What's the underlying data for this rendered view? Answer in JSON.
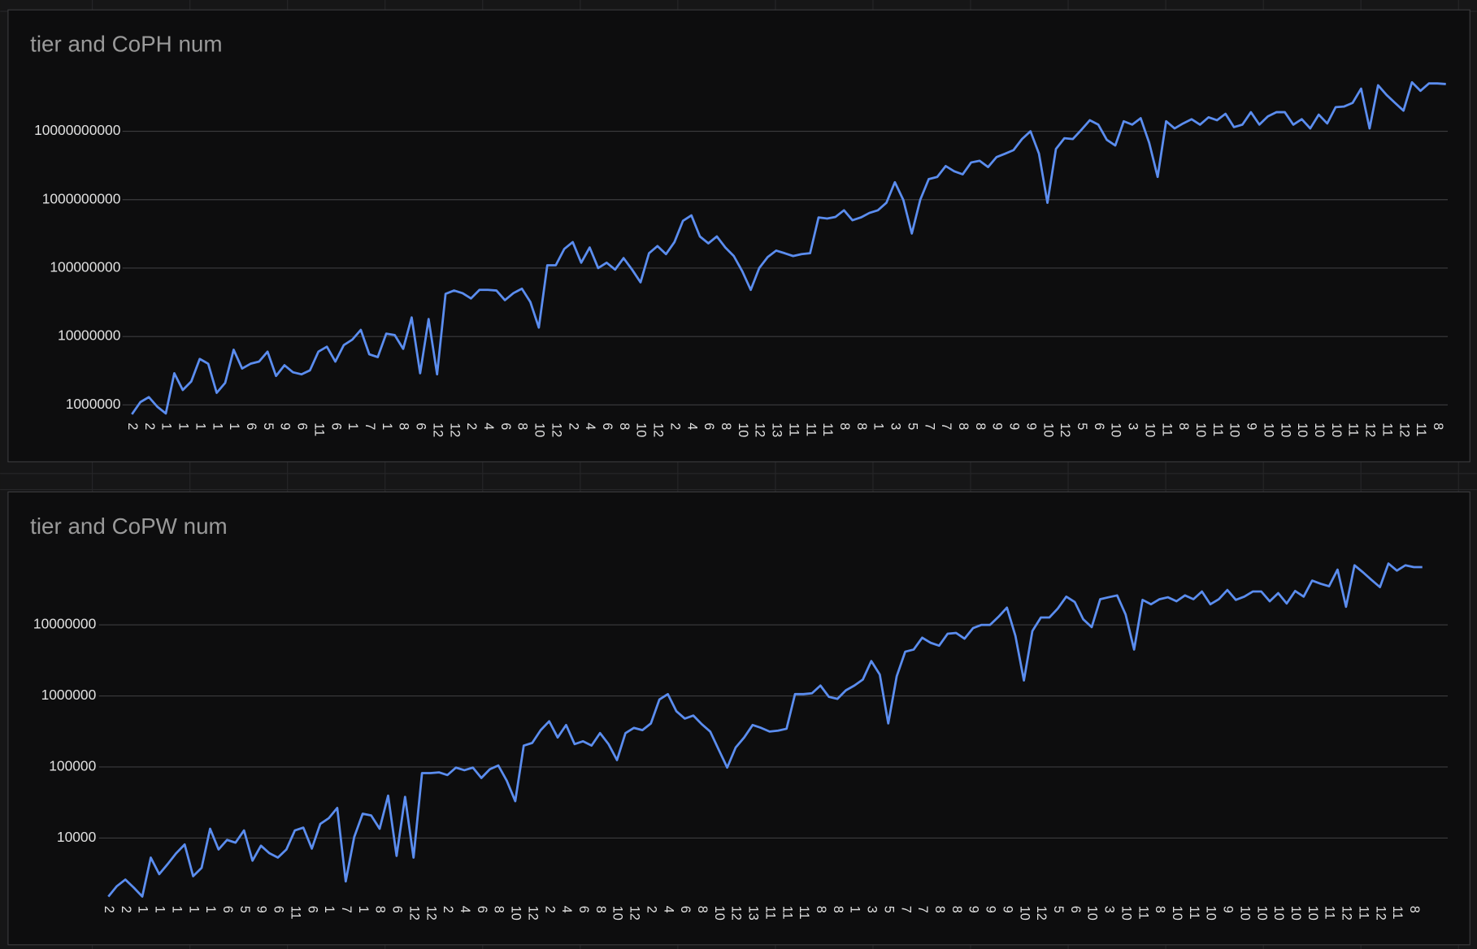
{
  "chart_data": [
    {
      "type": "line",
      "title": "tier and CoPH num",
      "log_scale": true,
      "grid": true,
      "ylim": [
        400000,
        120000000000
      ],
      "yticks": [
        1000000,
        10000000,
        100000000,
        1000000000,
        10000000000
      ],
      "categories": [
        "2",
        null,
        "2",
        null,
        "1",
        null,
        "1",
        null,
        "1",
        null,
        "1",
        null,
        "1",
        null,
        "6",
        null,
        "5",
        null,
        "9",
        null,
        "6",
        null,
        "11",
        null,
        "6",
        null,
        "1",
        null,
        "7",
        null,
        "1",
        null,
        "8",
        null,
        "6",
        null,
        "12",
        null,
        "12",
        null,
        "2",
        null,
        "4",
        null,
        "6",
        null,
        "8",
        null,
        "10",
        null,
        "12",
        null,
        "2",
        null,
        "4",
        null,
        "6",
        null,
        "8",
        null,
        "10",
        null,
        "12",
        null,
        "2",
        null,
        "4",
        null,
        "6",
        null,
        "8",
        null,
        "10",
        null,
        "12",
        null,
        "13",
        null,
        "11",
        null,
        "11",
        null,
        "11",
        null,
        "8",
        null,
        "8",
        null,
        "1",
        null,
        "3",
        null,
        "5",
        null,
        "7",
        null,
        "7",
        null,
        "8",
        null,
        "8",
        null,
        "9",
        null,
        "9",
        null,
        "9",
        null,
        "10",
        null,
        "12",
        null,
        "5",
        null,
        "6",
        null,
        "10",
        null,
        "3",
        null,
        "10",
        null,
        "11",
        null,
        "8",
        null,
        "10",
        null,
        "11",
        null,
        "10",
        null,
        "9",
        null,
        "10",
        null,
        "10",
        null,
        "10",
        null,
        "10",
        null,
        "10",
        null,
        "11",
        null,
        "12",
        null,
        "11",
        null,
        "12",
        null,
        "11",
        null,
        "8",
        null
      ],
      "series": [
        {
          "color": "#5b8def",
          "values": [
            730000,
            1100000,
            1300000,
            940000,
            750000,
            2900000,
            1650000,
            2200000,
            4700000,
            4000000,
            1500000,
            2100000,
            6400000,
            3400000,
            4000000,
            4300000,
            6000000,
            2650000,
            3800000,
            3000000,
            2800000,
            3200000,
            6000000,
            7100000,
            4300000,
            7500000,
            9000000,
            12500000,
            5500000,
            5000000,
            11000000,
            10500000,
            6600000,
            19000000,
            2900000,
            18000000,
            2800000,
            42000000,
            47000000,
            43000000,
            36000000,
            48000000,
            48000000,
            47000000,
            34000000,
            43000000,
            50000000,
            32000000,
            13500000,
            110000000,
            110000000,
            190000000,
            240000000,
            120000000,
            200000000,
            100000000,
            120000000,
            95000000,
            140000000,
            95000000,
            62000000,
            165000000,
            210000000,
            160000000,
            240000000,
            490000000,
            590000000,
            290000000,
            230000000,
            290000000,
            200000000,
            150000000,
            90000000,
            48000000,
            100000000,
            145000000,
            180000000,
            165000000,
            150000000,
            160000000,
            165000000,
            550000000,
            530000000,
            560000000,
            700000000,
            500000000,
            550000000,
            640000000,
            700000000,
            900000000,
            1800000000,
            990000000,
            320000000,
            1000000000,
            2000000000,
            2150000000,
            3100000000,
            2600000000,
            2350000000,
            3500000000,
            3700000000,
            3000000000,
            4200000000,
            4700000000,
            5300000000,
            7700000000,
            10000000000,
            4700000000,
            900000000,
            5500000000,
            7900000000,
            7700000000,
            10500000000,
            14500000000,
            12500000000,
            7500000000,
            6200000000,
            14000000000,
            12500000000,
            15500000000,
            6800000000,
            2150000000,
            14000000000,
            11000000000,
            13000000000,
            15000000000,
            12500000000,
            16000000000,
            14500000000,
            18000000000,
            11500000000,
            12500000000,
            19000000000,
            12500000000,
            16500000000,
            19000000000,
            19000000000,
            12500000000,
            15000000000,
            11000000000,
            17500000000,
            13000000000,
            22500000000,
            23000000000,
            26000000000,
            42000000000,
            11000000000,
            47000000000,
            34000000000,
            26000000000,
            20000000000,
            52000000000,
            39000000000,
            50000000000,
            50000000000,
            49000000000
          ]
        }
      ]
    },
    {
      "type": "line",
      "title": "tier and CoPW num",
      "log_scale": true,
      "grid": true,
      "ylim": [
        1260,
        150000000
      ],
      "yticks": [
        10000,
        100000,
        1000000,
        10000000
      ],
      "categories": [
        "2",
        null,
        "2",
        null,
        "1",
        null,
        "1",
        null,
        "1",
        null,
        "1",
        null,
        "1",
        null,
        "6",
        null,
        "5",
        null,
        "9",
        null,
        "6",
        null,
        "11",
        null,
        "6",
        null,
        "1",
        null,
        "7",
        null,
        "1",
        null,
        "8",
        null,
        "6",
        null,
        "12",
        null,
        "12",
        null,
        "2",
        null,
        "4",
        null,
        "6",
        null,
        "8",
        null,
        "10",
        null,
        "12",
        null,
        "2",
        null,
        "4",
        null,
        "6",
        null,
        "8",
        null,
        "10",
        null,
        "12",
        null,
        "2",
        null,
        "4",
        null,
        "6",
        null,
        "8",
        null,
        "10",
        null,
        "12",
        null,
        "13",
        null,
        "11",
        null,
        "11",
        null,
        "11",
        null,
        "8",
        null,
        "8",
        null,
        "1",
        null,
        "3",
        null,
        "5",
        null,
        "7",
        null,
        "7",
        null,
        "8",
        null,
        "8",
        null,
        "9",
        null,
        "9",
        null,
        "9",
        null,
        "10",
        null,
        "12",
        null,
        "5",
        null,
        "6",
        null,
        "10",
        null,
        "3",
        null,
        "10",
        null,
        "11",
        null,
        "8",
        null,
        "10",
        null,
        "11",
        null,
        "10",
        null,
        "9",
        null,
        "10",
        null,
        "10",
        null,
        "10",
        null,
        "10",
        null,
        "10",
        null,
        "11",
        null,
        "12",
        null,
        "11",
        null,
        "12",
        null,
        "11",
        null,
        "8",
        null
      ],
      "series": [
        {
          "color": "#5b8def",
          "values": [
            1500,
            2100,
            2600,
            2000,
            1500,
            5300,
            3100,
            4300,
            6100,
            8100,
            2900,
            3800,
            13500,
            6900,
            9400,
            8600,
            12800,
            4800,
            7800,
            6100,
            5300,
            6900,
            12800,
            14000,
            7100,
            15800,
            19000,
            26500,
            2450,
            10300,
            22000,
            20800,
            13500,
            39500,
            5600,
            38000,
            5300,
            82000,
            82000,
            84000,
            77000,
            98000,
            90000,
            98000,
            70000,
            93000,
            105000,
            64000,
            33000,
            200000,
            218000,
            330000,
            440000,
            260000,
            390000,
            210000,
            230000,
            200000,
            300000,
            210000,
            125000,
            300000,
            355000,
            330000,
            410000,
            890000,
            1060000,
            610000,
            480000,
            530000,
            400000,
            315000,
            175000,
            98000,
            188000,
            260000,
            390000,
            355000,
            315000,
            325000,
            345000,
            1060000,
            1060000,
            1090000,
            1400000,
            970000,
            910000,
            1200000,
            1400000,
            1700000,
            3100000,
            2000000,
            410000,
            1900000,
            4200000,
            4500000,
            6600000,
            5600000,
            5100000,
            7500000,
            7700000,
            6400000,
            9000000,
            10000000,
            10000000,
            13000000,
            17500000,
            7000000,
            1650000,
            8200000,
            12700000,
            12700000,
            17000000,
            25000000,
            21000000,
            12000000,
            9300000,
            23000000,
            24500000,
            26000000,
            14000000,
            4500000,
            22500000,
            19500000,
            23000000,
            24500000,
            21500000,
            26000000,
            23000000,
            29500000,
            19500000,
            23000000,
            31000000,
            22500000,
            25000000,
            29500000,
            29500000,
            21500000,
            28000000,
            20000000,
            30000000,
            25000000,
            42000000,
            38000000,
            35000000,
            60000000,
            18000000,
            69000000,
            55000000,
            43000000,
            34000000,
            73000000,
            58000000,
            69000000,
            65000000,
            65000000
          ]
        }
      ]
    }
  ]
}
